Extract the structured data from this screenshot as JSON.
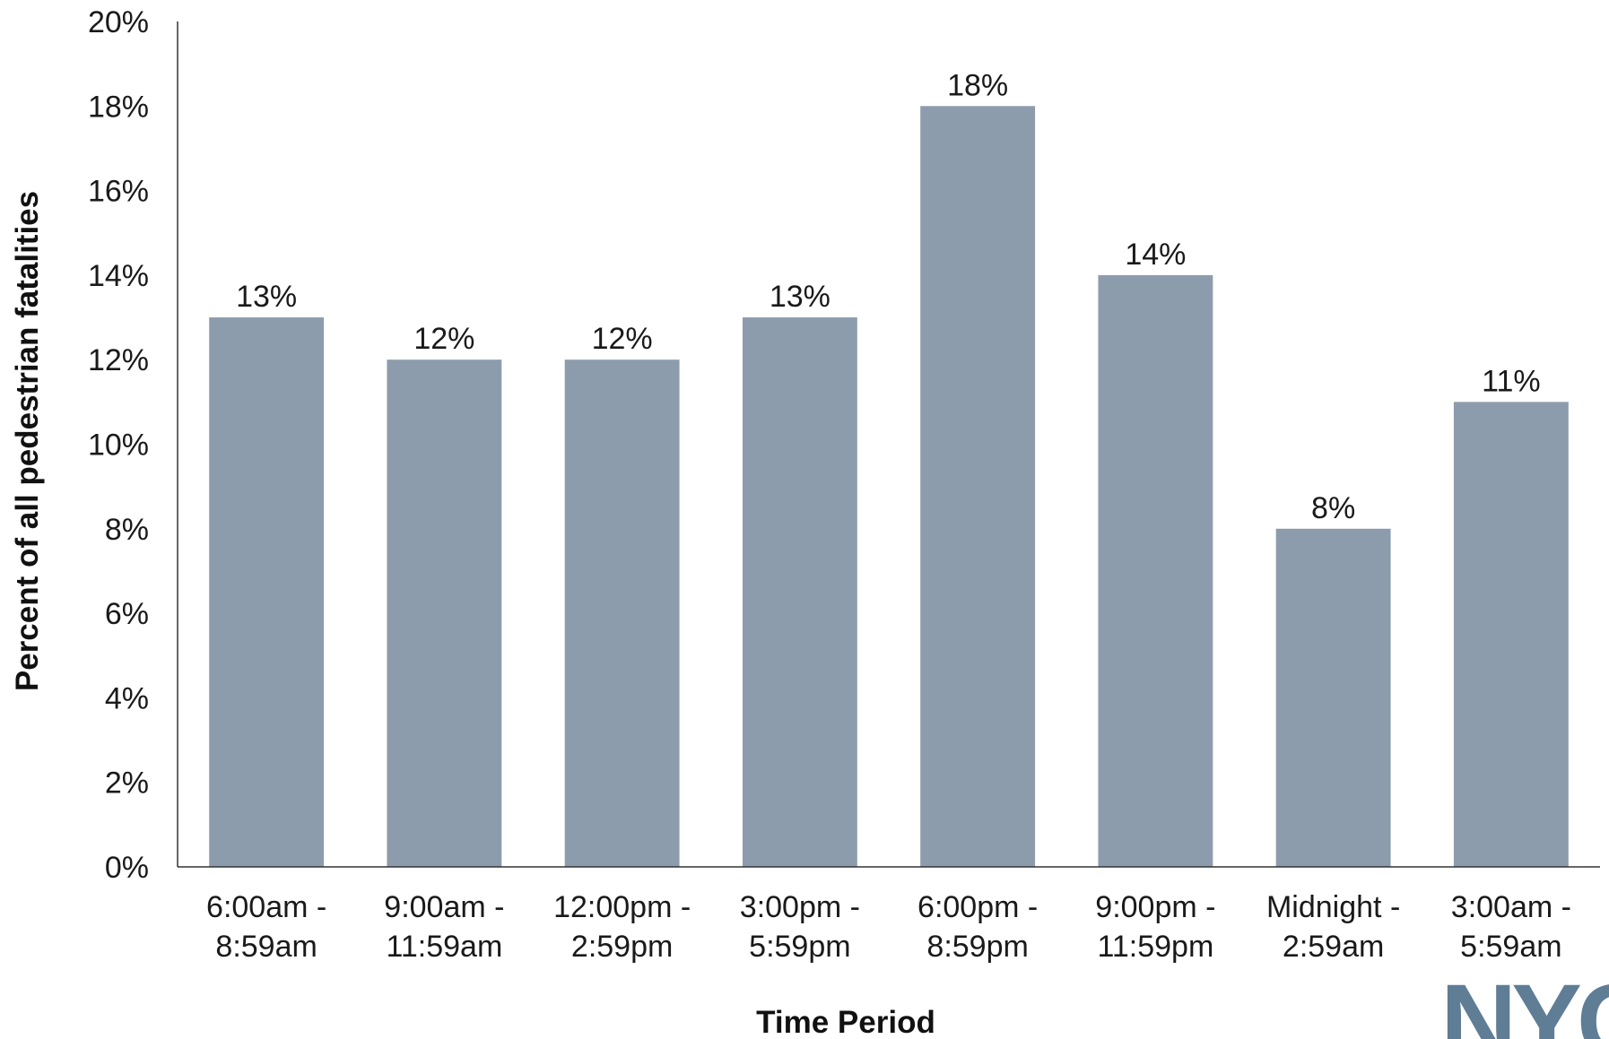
{
  "chart_data": {
    "type": "bar",
    "categories": [
      [
        "6:00am -",
        "8:59am"
      ],
      [
        "9:00am -",
        "11:59am"
      ],
      [
        "12:00pm -",
        "2:59pm"
      ],
      [
        "3:00pm -",
        "5:59pm"
      ],
      [
        "6:00pm -",
        "8:59pm"
      ],
      [
        "9:00pm -",
        "11:59pm"
      ],
      [
        "Midnight -",
        "2:59am"
      ],
      [
        "3:00am -",
        "5:59am"
      ]
    ],
    "values": [
      13,
      12,
      12,
      13,
      18,
      14,
      8,
      11
    ],
    "data_labels": [
      "13%",
      "12%",
      "12%",
      "13%",
      "18%",
      "14%",
      "8%",
      "11%"
    ],
    "xlabel": "Time Period",
    "ylabel": "Percent of all pedestrian fatalities",
    "ylim": [
      0,
      20
    ],
    "yticks": [
      0,
      2,
      4,
      6,
      8,
      10,
      12,
      14,
      16,
      18,
      20
    ],
    "ytick_labels": [
      "0%",
      "2%",
      "4%",
      "6%",
      "8%",
      "10%",
      "12%",
      "14%",
      "16%",
      "18%",
      "20%"
    ],
    "grid": false,
    "bar_color": "#8d9cac",
    "axis_color": "#333333"
  },
  "logo": {
    "icon": "nyc-logo-icon",
    "text": "NYC",
    "color": "#5f7d95"
  }
}
